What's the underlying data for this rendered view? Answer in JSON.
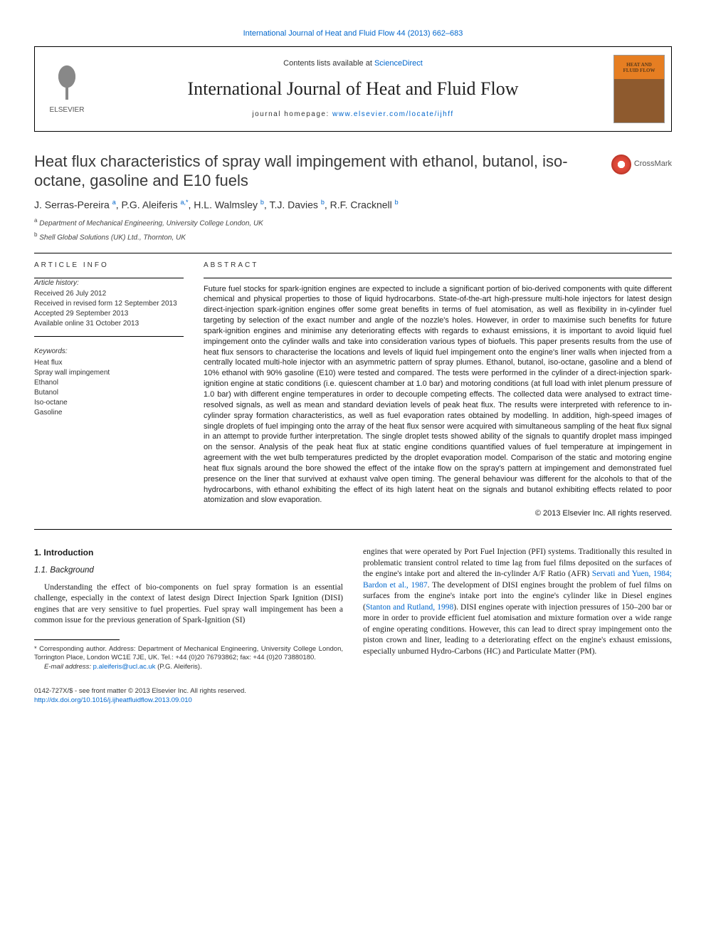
{
  "top_citation": "International Journal of Heat and Fluid Flow 44 (2013) 662–683",
  "header": {
    "publisher_name": "ELSEVIER",
    "contents_prefix": "Contents lists available at ",
    "contents_link": "ScienceDirect",
    "journal_title": "International Journal of Heat and Fluid Flow",
    "homepage_prefix": "journal homepage: ",
    "homepage_url": "www.elsevier.com/locate/ijhff",
    "cover_line1": "HEAT AND",
    "cover_line2": "FLUID FLOW"
  },
  "crossmark_label": "CrossMark",
  "article": {
    "title": "Heat flux characteristics of spray wall impingement with ethanol, butanol, iso-octane, gasoline and E10 fuels",
    "authors_html": "J. Serras-Pereira <sup>a</sup>, P.G. Aleiferis <sup>a,*</sup>, H.L. Walmsley <sup>b</sup>, T.J. Davies <sup>b</sup>, R.F. Cracknell <sup>b</sup>",
    "affiliations": [
      {
        "sup": "a",
        "text": "Department of Mechanical Engineering, University College London, UK"
      },
      {
        "sup": "b",
        "text": "Shell Global Solutions (UK) Ltd., Thornton, UK"
      }
    ]
  },
  "info": {
    "label": "ARTICLE INFO",
    "history_label": "Article history:",
    "history": [
      "Received 26 July 2012",
      "Received in revised form 12 September 2013",
      "Accepted 29 September 2013",
      "Available online 31 October 2013"
    ],
    "keywords_label": "Keywords:",
    "keywords": [
      "Heat flux",
      "Spray wall impingement",
      "Ethanol",
      "Butanol",
      "Iso-octane",
      "Gasoline"
    ]
  },
  "abstract": {
    "label": "ABSTRACT",
    "text": "Future fuel stocks for spark-ignition engines are expected to include a significant portion of bio-derived components with quite different chemical and physical properties to those of liquid hydrocarbons. State-of-the-art high-pressure multi-hole injectors for latest design direct-injection spark-ignition engines offer some great benefits in terms of fuel atomisation, as well as flexibility in in-cylinder fuel targeting by selection of the exact number and angle of the nozzle's holes. However, in order to maximise such benefits for future spark-ignition engines and minimise any deteriorating effects with regards to exhaust emissions, it is important to avoid liquid fuel impingement onto the cylinder walls and take into consideration various types of biofuels. This paper presents results from the use of heat flux sensors to characterise the locations and levels of liquid fuel impingement onto the engine's liner walls when injected from a centrally located multi-hole injector with an asymmetric pattern of spray plumes. Ethanol, butanol, iso-octane, gasoline and a blend of 10% ethanol with 90% gasoline (E10) were tested and compared. The tests were performed in the cylinder of a direct-injection spark-ignition engine at static conditions (i.e. quiescent chamber at 1.0 bar) and motoring conditions (at full load with inlet plenum pressure of 1.0 bar) with different engine temperatures in order to decouple competing effects. The collected data were analysed to extract time-resolved signals, as well as mean and standard deviation levels of peak heat flux. The results were interpreted with reference to in-cylinder spray formation characteristics, as well as fuel evaporation rates obtained by modelling. In addition, high-speed images of single droplets of fuel impinging onto the array of the heat flux sensor were acquired with simultaneous sampling of the heat flux signal in an attempt to provide further interpretation. The single droplet tests showed ability of the signals to quantify droplet mass impinged on the sensor. Analysis of the peak heat flux at static engine conditions quantified values of fuel temperature at impingement in agreement with the wet bulb temperatures predicted by the droplet evaporation model. Comparison of the static and motoring engine heat flux signals around the bore showed the effect of the intake flow on the spray's pattern at impingement and demonstrated fuel presence on the liner that survived at exhaust valve open timing. The general behaviour was different for the alcohols to that of the hydrocarbons, with ethanol exhibiting the effect of its high latent heat on the signals and butanol exhibiting effects related to poor atomization and slow evaporation.",
    "copyright": "© 2013 Elsevier Inc. All rights reserved."
  },
  "body": {
    "section_num": "1.",
    "section_title": "Introduction",
    "subsection_num": "1.1.",
    "subsection_title": "Background",
    "col1_para": "Understanding the effect of bio-components on fuel spray formation is an essential challenge, especially in the context of latest design Direct Injection Spark Ignition (DISI) engines that are very sensitive to fuel properties. Fuel spray wall impingement has been a common issue for the previous generation of Spark-Ignition (SI)",
    "col2_para_pre": "engines that were operated by Port Fuel Injection (PFI) systems. Traditionally this resulted in problematic transient control related to time lag from fuel films deposited on the surfaces of the engine's intake port and altered the in-cylinder A/F Ratio (AFR) ",
    "col2_ref1": "Servati and Yuen, 1984; Bardon et al., 1987",
    "col2_para_mid1": ". The development of DISI engines brought the problem of fuel films on surfaces from the engine's intake port into the engine's cylinder like in Diesel engines (",
    "col2_ref2": "Stanton and Rutland, 1998",
    "col2_para_post": "). DISI engines operate with injection pressures of 150–200 bar or more in order to provide efficient fuel atomisation and mixture formation over a wide range of engine operating conditions. However, this can lead to direct spray impingement onto the piston crown and liner, leading to a deteriorating effect on the engine's exhaust emissions, especially unburned Hydro-Carbons (HC) and Particulate Matter (PM)."
  },
  "footnotes": {
    "corr": "* Corresponding author. Address: Department of Mechanical Engineering, University College London, Torrington Place, London WC1E 7JE, UK. Tel.: +44 (0)20 76793862; fax: +44 (0)20 73880180.",
    "email_label": "E-mail address: ",
    "email": "p.aleiferis@ucl.ac.uk",
    "email_suffix": " (P.G. Aleiferis)."
  },
  "bottom": {
    "issn": "0142-727X/$ - see front matter © 2013 Elsevier Inc. All rights reserved.",
    "doi": "http://dx.doi.org/10.1016/j.ijheatfluidflow.2013.09.010"
  },
  "colors": {
    "link": "#0066cc",
    "text": "#1a1a1a",
    "cover_top": "#e67e22",
    "cover_bottom": "#8e5a2e",
    "crossmark_ring": "#c0392b"
  }
}
